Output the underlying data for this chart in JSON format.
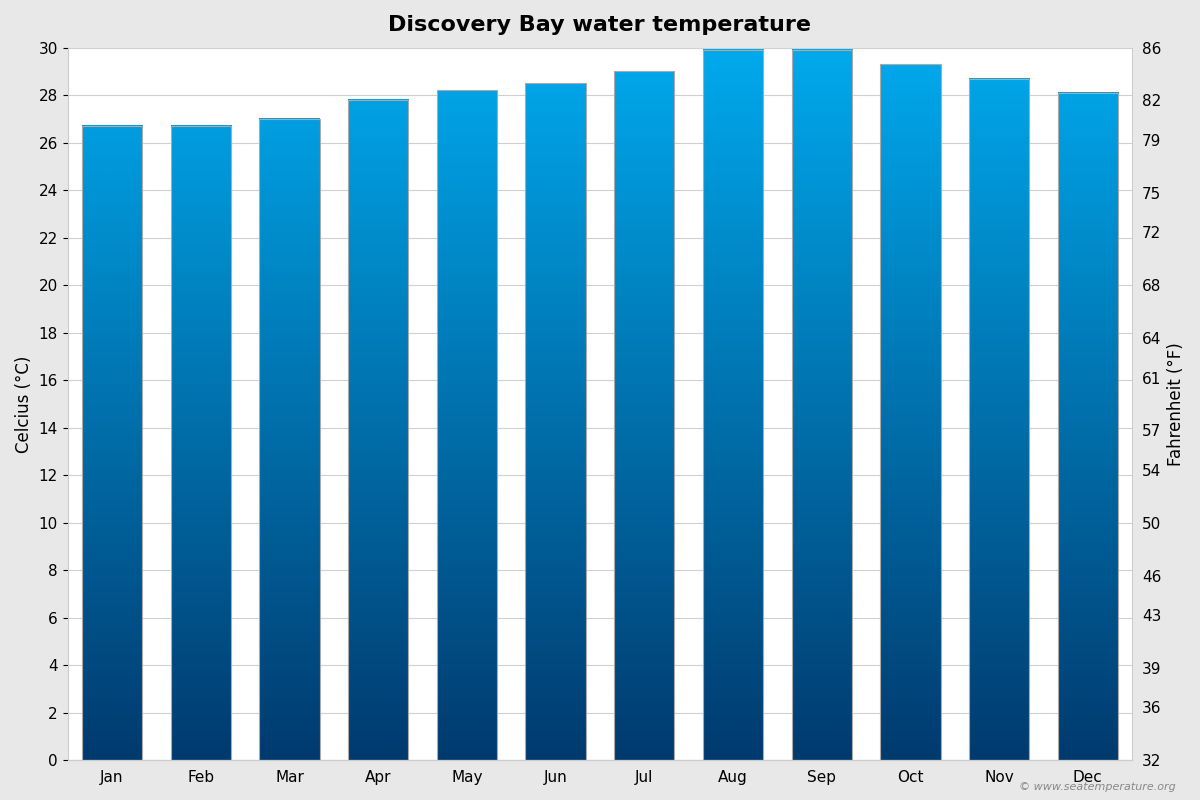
{
  "title": "Discovery Bay water temperature",
  "months": [
    "Jan",
    "Feb",
    "Mar",
    "Apr",
    "May",
    "Jun",
    "Jul",
    "Aug",
    "Sep",
    "Oct",
    "Nov",
    "Dec"
  ],
  "values_c": [
    26.7,
    26.7,
    27.0,
    27.8,
    28.2,
    28.5,
    29.0,
    29.9,
    29.9,
    29.3,
    28.7,
    28.1
  ],
  "ylim_c": [
    0,
    30
  ],
  "ylim_f": [
    32,
    86
  ],
  "yticks_c": [
    0,
    2,
    4,
    6,
    8,
    10,
    12,
    14,
    16,
    18,
    20,
    22,
    24,
    26,
    28,
    30
  ],
  "yticks_f": [
    32,
    36,
    39,
    43,
    46,
    50,
    54,
    57,
    61,
    64,
    68,
    72,
    75,
    79,
    82,
    86
  ],
  "ylabel_left": "Celcius (°C)",
  "ylabel_right": "Fahrenheit (°F)",
  "color_top": "#00aaee",
  "color_bottom": "#003a6e",
  "bg_color": "#e8e8e8",
  "plot_bg": "#ffffff",
  "bar_edge_color": "#aaaaaa",
  "watermark": "© www.seatemperature.org",
  "title_fontsize": 16,
  "label_fontsize": 12,
  "tick_fontsize": 11,
  "bar_width": 0.68
}
